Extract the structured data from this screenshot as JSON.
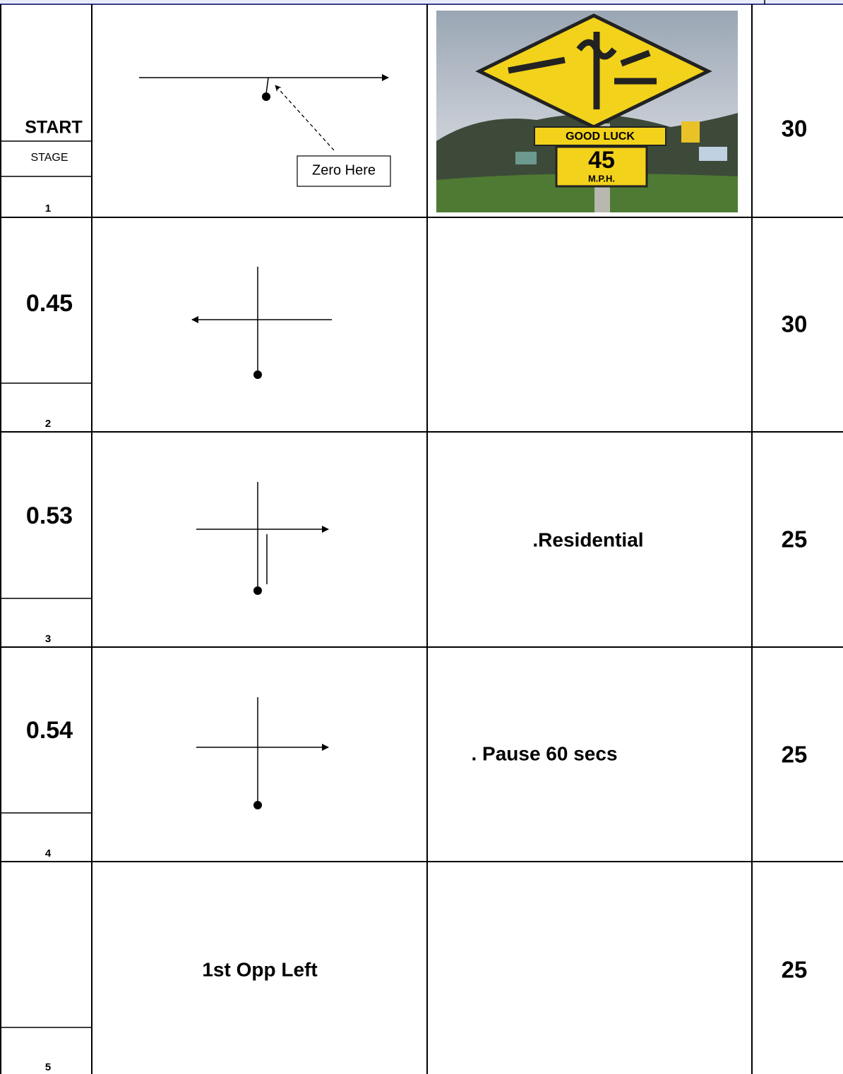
{
  "rows": [
    {
      "number": "1",
      "distance": "START",
      "stage": "STAGE",
      "note": "Zero Here",
      "sign": {
        "caption": "GOOD LUCK",
        "limit": "45",
        "unit": "M.P.H."
      },
      "speed": 30
    },
    {
      "number": "2",
      "distance": 0.45,
      "speed": 30
    },
    {
      "number": "3",
      "distance": 0.53,
      "instruction": ".Residential",
      "speed": 25
    },
    {
      "number": "4",
      "distance": 0.54,
      "instruction": ". Pause 60 secs",
      "speed": 25
    },
    {
      "number": "5",
      "direction": "1st Opp Left",
      "speed": 25
    }
  ]
}
